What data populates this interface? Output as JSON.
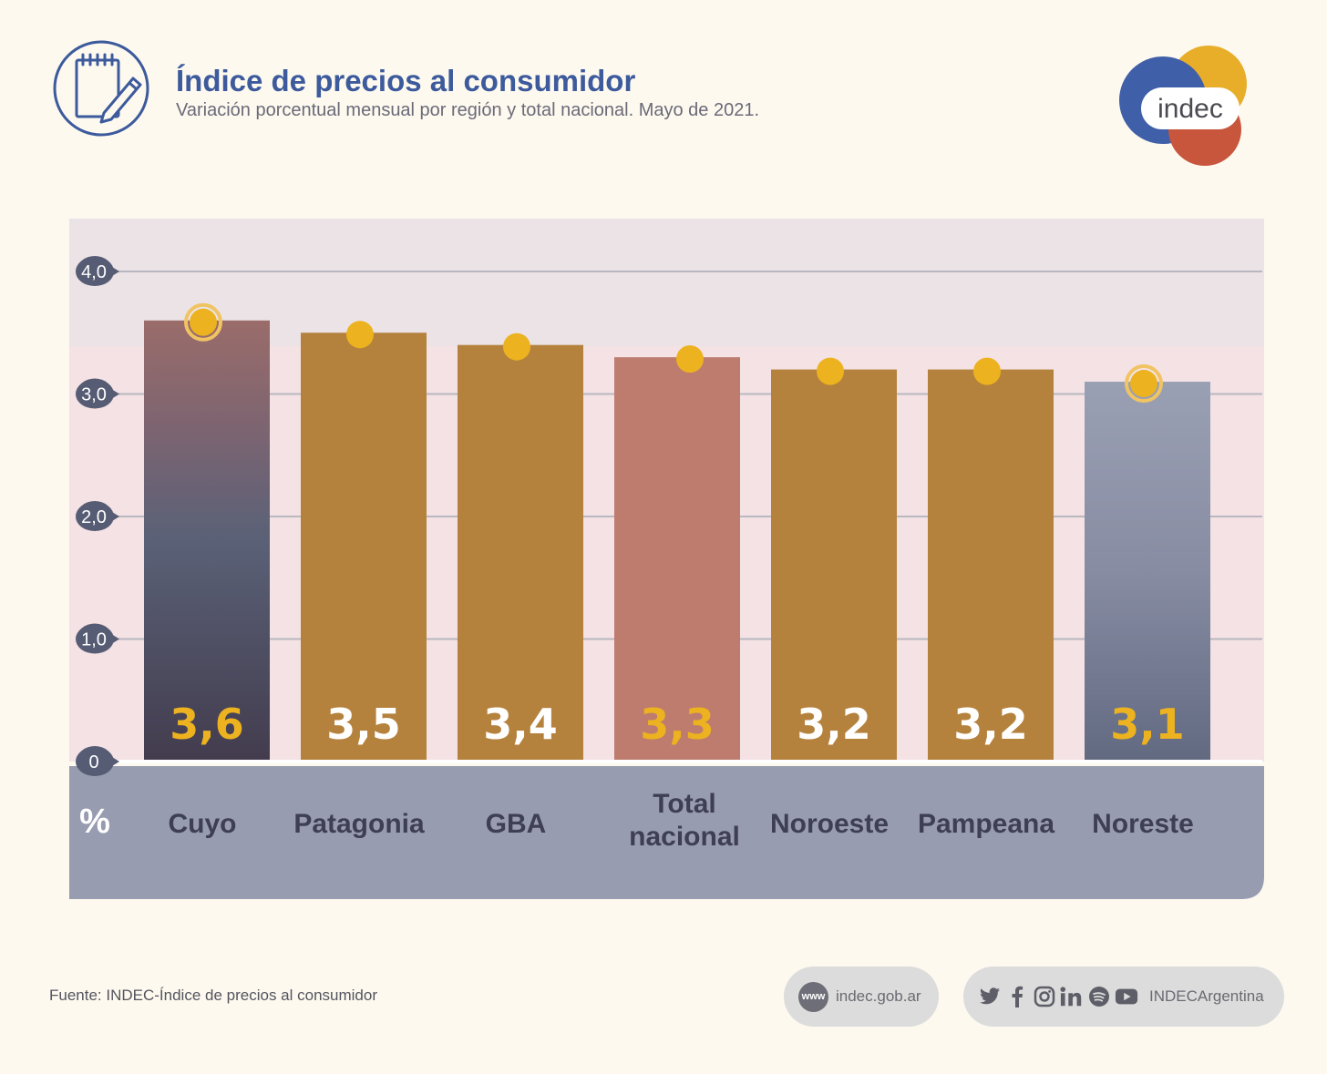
{
  "header": {
    "title": "Índice de precios al consumidor",
    "subtitle": "Variación porcentual mensual por región y total nacional. Mayo de 2021.",
    "icon": "notepad-pencil-icon"
  },
  "logo": {
    "text": "indec",
    "colors": [
      "#3f5fa8",
      "#e8ae2a",
      "#c7563d"
    ]
  },
  "colors": {
    "background": "#fdf9ef",
    "plot_upper_band": "#ebe3e6",
    "plot_lower_band": "#f4e2e4",
    "category_band": "#989cb1",
    "bar_orange": "#b5823d",
    "bar_total": "#bd7c6e",
    "label_yellow": "#ecb21f",
    "label_white": "#ffffff",
    "marker": "#ecb21f",
    "axis_badge": "#565c74"
  },
  "chart_data": {
    "type": "bar",
    "unit_label": "%",
    "categories": [
      "Cuyo",
      "Patagonia",
      "GBA",
      "Total nacional",
      "Noroeste",
      "Pampeana",
      "Noreste"
    ],
    "values": [
      3.6,
      3.5,
      3.4,
      3.3,
      3.2,
      3.2,
      3.1
    ],
    "value_labels": [
      "3,6",
      "3,5",
      "3,4",
      "3,3",
      "3,2",
      "3,2",
      "3,1"
    ],
    "bar_styles": [
      "gradient-dark",
      "orange",
      "orange",
      "total",
      "orange",
      "orange",
      "gradient-gray"
    ],
    "label_styles": [
      "yellow",
      "white",
      "white",
      "yellow",
      "white",
      "white",
      "yellow"
    ],
    "highlighted": [
      true,
      false,
      false,
      false,
      false,
      false,
      true
    ],
    "yticks": [
      "0",
      "1,0",
      "2,0",
      "3,0",
      "4,0"
    ],
    "ytick_values": [
      0,
      1,
      2,
      3,
      4
    ],
    "ylim": [
      0,
      4.4
    ],
    "grid": true,
    "title": "Índice de precios al consumidor"
  },
  "footer": {
    "source": "Fuente: INDEC-Índice de precios al consumidor",
    "web_badge": "www",
    "web": "indec.gob.ar",
    "social_handle": "INDECArgentina",
    "social_icons": [
      "twitter-icon",
      "facebook-icon",
      "instagram-icon",
      "linkedin-icon",
      "spotify-icon",
      "youtube-icon"
    ]
  }
}
